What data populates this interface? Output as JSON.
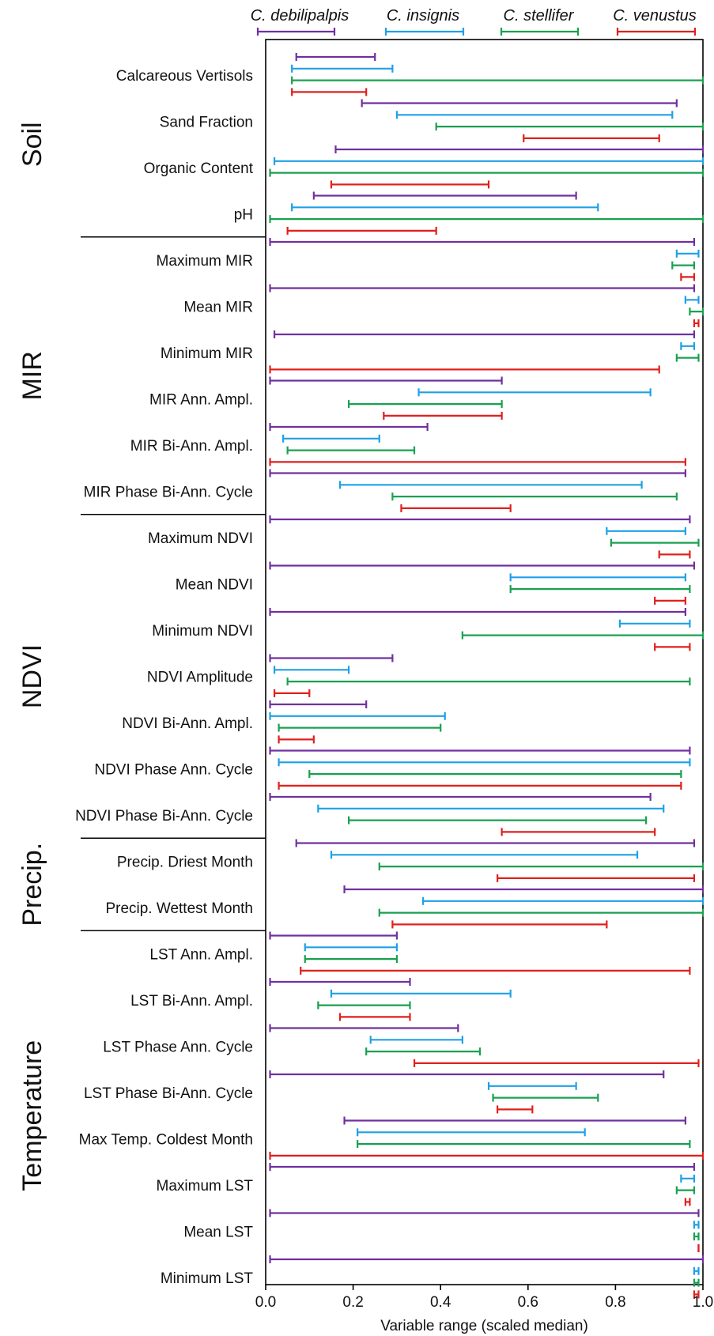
{
  "chart_data": {
    "type": "range",
    "xlabel": "Variable range (scaled median)",
    "xlim": [
      0,
      1
    ],
    "xticks": [
      "0.0",
      "0.2",
      "0.4",
      "0.6",
      "0.8",
      "1.0"
    ],
    "grid": false,
    "legend_placement": "top",
    "series": [
      {
        "name": "C. debilipalpis",
        "color": "#7030a0"
      },
      {
        "name": "C. insignis",
        "color": "#1ea0e6"
      },
      {
        "name": "C. stellifer",
        "color": "#1aa050"
      },
      {
        "name": "C. venustus",
        "color": "#e0201c"
      }
    ],
    "groups": [
      {
        "name": "Soil",
        "variables": [
          {
            "label": "Calcareous Vertisols",
            "ranges": [
              [
                0.07,
                0.25
              ],
              [
                0.06,
                0.29
              ],
              [
                0.06,
                1.0
              ],
              [
                0.06,
                0.23
              ]
            ]
          },
          {
            "label": "Sand Fraction",
            "ranges": [
              [
                0.22,
                0.94
              ],
              [
                0.3,
                0.93
              ],
              [
                0.39,
                1.0
              ],
              [
                0.59,
                0.9
              ]
            ]
          },
          {
            "label": "Organic Content",
            "ranges": [
              [
                0.16,
                1.0
              ],
              [
                0.02,
                1.0
              ],
              [
                0.01,
                1.0
              ],
              [
                0.15,
                0.51
              ]
            ]
          },
          {
            "label": "pH",
            "ranges": [
              [
                0.11,
                0.71
              ],
              [
                0.06,
                0.76
              ],
              [
                0.01,
                1.0
              ],
              [
                0.05,
                0.39
              ]
            ]
          }
        ]
      },
      {
        "name": "MIR",
        "variables": [
          {
            "label": "Maximum MIR",
            "ranges": [
              [
                0.01,
                0.98
              ],
              [
                0.94,
                0.99
              ],
              [
                0.93,
                0.98
              ],
              [
                0.95,
                0.98
              ]
            ]
          },
          {
            "label": "Mean MIR",
            "ranges": [
              [
                0.01,
                0.98
              ],
              [
                0.96,
                0.99
              ],
              [
                0.97,
                1.0
              ],
              [
                0.98,
                0.99
              ]
            ]
          },
          {
            "label": "Minimum MIR",
            "ranges": [
              [
                0.02,
                0.98
              ],
              [
                0.95,
                0.98
              ],
              [
                0.94,
                0.99
              ],
              [
                0.01,
                0.9
              ]
            ]
          },
          {
            "label": "MIR Ann. Ampl.",
            "ranges": [
              [
                0.01,
                0.54
              ],
              [
                0.35,
                0.88
              ],
              [
                0.19,
                0.54
              ],
              [
                0.27,
                0.54
              ]
            ]
          },
          {
            "label": "MIR Bi-Ann. Ampl.",
            "ranges": [
              [
                0.01,
                0.37
              ],
              [
                0.04,
                0.26
              ],
              [
                0.05,
                0.34
              ],
              [
                0.01,
                0.96
              ]
            ]
          },
          {
            "label": "MIR Phase Bi-Ann. Cycle",
            "ranges": [
              [
                0.01,
                0.96
              ],
              [
                0.17,
                0.86
              ],
              [
                0.29,
                0.94
              ],
              [
                0.31,
                0.56
              ]
            ]
          }
        ]
      },
      {
        "name": "NDVI",
        "variables": [
          {
            "label": "Maximum NDVI",
            "ranges": [
              [
                0.01,
                0.97
              ],
              [
                0.78,
                0.96
              ],
              [
                0.79,
                0.99
              ],
              [
                0.9,
                0.97
              ]
            ]
          },
          {
            "label": "Mean NDVI",
            "ranges": [
              [
                0.01,
                0.98
              ],
              [
                0.56,
                0.96
              ],
              [
                0.56,
                0.97
              ],
              [
                0.89,
                0.96
              ]
            ]
          },
          {
            "label": "Minimum NDVI",
            "ranges": [
              [
                0.01,
                0.96
              ],
              [
                0.81,
                0.97
              ],
              [
                0.45,
                1.0
              ],
              [
                0.89,
                0.97
              ]
            ]
          },
          {
            "label": "NDVI Amplitude",
            "ranges": [
              [
                0.01,
                0.29
              ],
              [
                0.02,
                0.19
              ],
              [
                0.05,
                0.97
              ],
              [
                0.02,
                0.1
              ]
            ]
          },
          {
            "label": "NDVI Bi-Ann. Ampl.",
            "ranges": [
              [
                0.01,
                0.23
              ],
              [
                0.01,
                0.41
              ],
              [
                0.03,
                0.4
              ],
              [
                0.03,
                0.11
              ]
            ]
          },
          {
            "label": "NDVI Phase Ann. Cycle",
            "ranges": [
              [
                0.01,
                0.97
              ],
              [
                0.03,
                0.97
              ],
              [
                0.1,
                0.95
              ],
              [
                0.03,
                0.95
              ]
            ]
          },
          {
            "label": "NDVI Phase Bi-Ann. Cycle",
            "ranges": [
              [
                0.01,
                0.88
              ],
              [
                0.12,
                0.91
              ],
              [
                0.19,
                0.87
              ],
              [
                0.54,
                0.89
              ]
            ]
          }
        ]
      },
      {
        "name": "Precip.",
        "variables": [
          {
            "label": "Precip. Driest Month",
            "ranges": [
              [
                0.07,
                0.98
              ],
              [
                0.15,
                0.85
              ],
              [
                0.26,
                1.0
              ],
              [
                0.53,
                0.98
              ]
            ]
          },
          {
            "label": "Precip. Wettest Month",
            "ranges": [
              [
                0.18,
                1.0
              ],
              [
                0.36,
                1.0
              ],
              [
                0.26,
                1.0
              ],
              [
                0.29,
                0.78
              ]
            ]
          }
        ]
      },
      {
        "name": "Temperature",
        "variables": [
          {
            "label": "LST Ann. Ampl.",
            "ranges": [
              [
                0.01,
                0.3
              ],
              [
                0.09,
                0.3
              ],
              [
                0.09,
                0.3
              ],
              [
                0.08,
                0.97
              ]
            ]
          },
          {
            "label": "LST Bi-Ann. Ampl.",
            "ranges": [
              [
                0.01,
                0.33
              ],
              [
                0.15,
                0.56
              ],
              [
                0.12,
                0.33
              ],
              [
                0.17,
                0.33
              ]
            ]
          },
          {
            "label": "LST Phase Ann. Cycle",
            "ranges": [
              [
                0.01,
                0.44
              ],
              [
                0.24,
                0.45
              ],
              [
                0.23,
                0.49
              ],
              [
                0.34,
                0.99
              ]
            ]
          },
          {
            "label": "LST Phase Bi-Ann. Cycle",
            "ranges": [
              [
                0.01,
                0.91
              ],
              [
                0.51,
                0.71
              ],
              [
                0.52,
                0.76
              ],
              [
                0.53,
                0.61
              ]
            ]
          },
          {
            "label": "Max Temp. Coldest Month",
            "ranges": [
              [
                0.18,
                0.96
              ],
              [
                0.21,
                0.73
              ],
              [
                0.21,
                0.97
              ],
              [
                0.01,
                1.0
              ]
            ]
          },
          {
            "label": "Maximum LST",
            "ranges": [
              [
                0.01,
                0.98
              ],
              [
                0.95,
                0.98
              ],
              [
                0.94,
                0.98
              ],
              [
                0.96,
                0.97
              ]
            ]
          },
          {
            "label": "Mean LST",
            "ranges": [
              [
                0.01,
                0.99
              ],
              [
                0.98,
                0.99
              ],
              [
                0.98,
                0.99
              ],
              [
                0.99,
                0.99
              ]
            ]
          },
          {
            "label": "Minimum LST",
            "ranges": [
              [
                0.01,
                1.0
              ],
              [
                0.98,
                0.99
              ],
              [
                0.98,
                0.99
              ],
              [
                0.98,
                0.99
              ]
            ]
          }
        ]
      }
    ]
  }
}
